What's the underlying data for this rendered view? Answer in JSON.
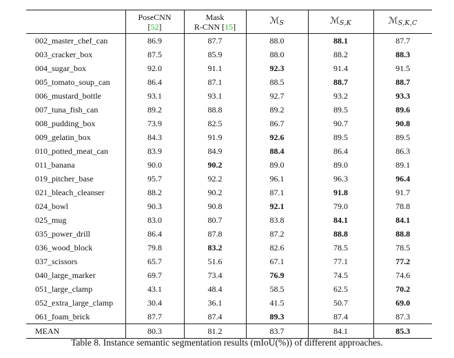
{
  "colors": {
    "cite_green": "#28b428",
    "rule_color": "#1c1c1c"
  },
  "caption": "Table 8. Instance semantic segmentation results (mIoU(%)) of different approaches.",
  "header": {
    "col_label": "",
    "col_posecnn": {
      "line1": "PoseCNN",
      "pre": "[",
      "cite": "52",
      "post": "]"
    },
    "col_maskrcnn": {
      "line1": "Mask",
      "pre": "R-CNN [",
      "cite": "15",
      "post": "]"
    },
    "col_ms": {
      "base": "ℳ",
      "sub": "S"
    },
    "col_msk": {
      "base": "ℳ",
      "sub": "S,K"
    },
    "col_mskc": {
      "base": "ℳ",
      "sub": "S,K,C"
    }
  },
  "rows": [
    {
      "label": "002_master_chef_can",
      "values": [
        "86.9",
        "87.7",
        "88.0",
        "88.1",
        "87.7"
      ],
      "bold": [
        3
      ]
    },
    {
      "label": "003_cracker_box",
      "values": [
        "87.5",
        "85.9",
        "88.0",
        "88.2",
        "88.3"
      ],
      "bold": [
        4
      ]
    },
    {
      "label": "004_sugar_box",
      "values": [
        "92.0",
        "91.1",
        "92.3",
        "91.4",
        "91.5"
      ],
      "bold": [
        2
      ]
    },
    {
      "label": "005_tomato_soup_can",
      "values": [
        "86.4",
        "87.1",
        "88.5",
        "88.7",
        "88.7"
      ],
      "bold": [
        3,
        4
      ]
    },
    {
      "label": "006_mustard_bottle",
      "values": [
        "93.1",
        "93.1",
        "92.7",
        "93.2",
        "93.3"
      ],
      "bold": [
        4
      ]
    },
    {
      "label": "007_tuna_fish_can",
      "values": [
        "89.2",
        "88.8",
        "89.2",
        "89.5",
        "89.6"
      ],
      "bold": [
        4
      ]
    },
    {
      "label": "008_pudding_box",
      "values": [
        "73.9",
        "82.5",
        "86.7",
        "90.7",
        "90.8"
      ],
      "bold": [
        4
      ]
    },
    {
      "label": "009_gelatin_box",
      "values": [
        "84.3",
        "91.9",
        "92.6",
        "89.5",
        "89.5"
      ],
      "bold": [
        2
      ]
    },
    {
      "label": "010_potted_meat_can",
      "values": [
        "83.9",
        "84.9",
        "88.4",
        "86.4",
        "86.3"
      ],
      "bold": [
        2
      ]
    },
    {
      "label": "011_banana",
      "values": [
        "90.0",
        "90.2",
        "89.0",
        "89.0",
        "89.1"
      ],
      "bold": [
        1
      ]
    },
    {
      "label": "019_pitcher_base",
      "values": [
        "95.7",
        "92.2",
        "96.1",
        "96.3",
        "96.4"
      ],
      "bold": [
        4
      ]
    },
    {
      "label": "021_bleach_cleanser",
      "values": [
        "88.2",
        "90.2",
        "87.1",
        "91.8",
        "91.7"
      ],
      "bold": [
        3
      ]
    },
    {
      "label": "024_bowl",
      "values": [
        "90.3",
        "90.8",
        "92.1",
        "79.0",
        "78.8"
      ],
      "bold": [
        2
      ]
    },
    {
      "label": "025_mug",
      "values": [
        "83.0",
        "80.7",
        "83.8",
        "84.1",
        "84.1"
      ],
      "bold": [
        3,
        4
      ]
    },
    {
      "label": "035_power_drill",
      "values": [
        "86.4",
        "87.8",
        "87.2",
        "88.8",
        "88.8"
      ],
      "bold": [
        3,
        4
      ]
    },
    {
      "label": "036_wood_block",
      "values": [
        "79.8",
        "83.2",
        "82.6",
        "78.5",
        "78.5"
      ],
      "bold": [
        1
      ]
    },
    {
      "label": "037_scissors",
      "values": [
        "65.7",
        "51.6",
        "67.1",
        "77.1",
        "77.2"
      ],
      "bold": [
        4
      ]
    },
    {
      "label": "040_large_marker",
      "values": [
        "69.7",
        "73.4",
        "76.9",
        "74.5",
        "74.6"
      ],
      "bold": [
        2
      ]
    },
    {
      "label": "051_large_clamp",
      "values": [
        "43.1",
        "48.4",
        "58.5",
        "62.5",
        "70.2"
      ],
      "bold": [
        4
      ]
    },
    {
      "label": "052_extra_large_clamp",
      "values": [
        "30.4",
        "36.1",
        "41.5",
        "50.7",
        "69.0"
      ],
      "bold": [
        4
      ]
    },
    {
      "label": "061_foam_brick",
      "values": [
        "87.7",
        "87.4",
        "89.3",
        "87.4",
        "87.3"
      ],
      "bold": [
        2
      ]
    }
  ],
  "mean_row": {
    "label": "MEAN",
    "values": [
      "80.3",
      "81.2",
      "83.7",
      "84.1",
      "85.3"
    ],
    "bold": [
      4
    ]
  }
}
